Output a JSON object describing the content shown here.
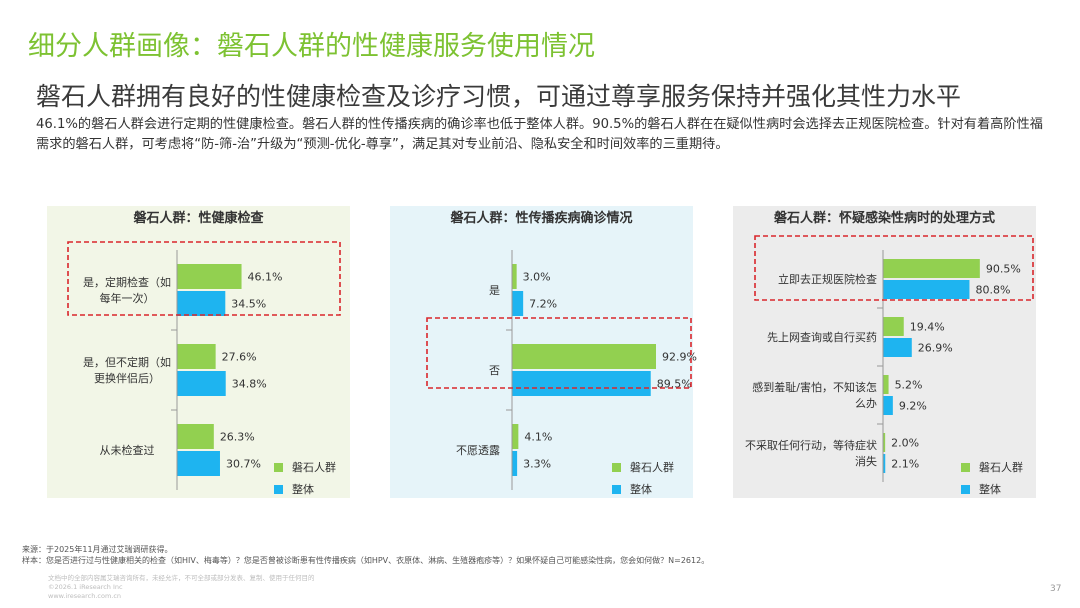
{
  "header": {
    "title": "细分人群画像：磐石人群的性健康服务使用情况",
    "subtitle": "磐石人群拥有良好的性健康检查及诊疗习惯，可通过尊享服务保持并强化其性力水平",
    "description": "46.1%的磐石人群会进行定期的性健康检查。磐石人群的性传播疾病的确诊率也低于整体人群。90.5%的磐石人群在在疑似性病时会选择去正规医院检查。针对有着高阶性福需求的磐石人群，可考虑将“防-筛-治”升级为“预测-优化-尊享”，满足其对专业前沿、隐私安全和时间效率的三重期待。"
  },
  "colors": {
    "green": "#92d050",
    "blue": "#1eb4f0",
    "highlight": "#d9262c",
    "title_green": "#7dc232"
  },
  "legend": {
    "series_1": "磐石人群",
    "series_2": "整体"
  },
  "chart_data": [
    {
      "type": "bar",
      "orientation": "horizontal",
      "title": "磐石人群：性健康检查",
      "categories": [
        "是，定期检查（如每年一次）",
        "是，但不定期（如更换伴侣后）",
        "从未检查过"
      ],
      "category_lines": [
        [
          "是，定期检查（如",
          "每年一次）"
        ],
        [
          "是，但不定期（如",
          "更换伴侣后）"
        ],
        [
          "从未检查过"
        ]
      ],
      "series": [
        {
          "name": "磐石人群",
          "values": [
            46.1,
            27.6,
            26.3
          ],
          "color": "#92d050"
        },
        {
          "name": "整体",
          "values": [
            34.5,
            34.8,
            30.7
          ],
          "color": "#1eb4f0"
        }
      ],
      "unit": "%",
      "highlight_index": 0,
      "legend": "bottom-right"
    },
    {
      "type": "bar",
      "orientation": "horizontal",
      "title": "磐石人群：性传播疾病确诊情况",
      "categories": [
        "是",
        "否",
        "不愿透露"
      ],
      "category_lines": [
        [
          "是"
        ],
        [
          "否"
        ],
        [
          "不愿透露"
        ]
      ],
      "series": [
        {
          "name": "磐石人群",
          "values": [
            3.0,
            92.9,
            4.1
          ],
          "color": "#92d050"
        },
        {
          "name": "整体",
          "values": [
            7.2,
            89.5,
            3.3
          ],
          "color": "#1eb4f0"
        }
      ],
      "unit": "%",
      "highlight_index": 1,
      "legend": "bottom-right"
    },
    {
      "type": "bar",
      "orientation": "horizontal",
      "title": "磐石人群：怀疑感染性病时的处理方式",
      "categories": [
        "立即去正规医院检查",
        "先上网查询或自行买药",
        "感到羞耻/害怕，不知该怎么办",
        "不采取任何行动，等待症状消失"
      ],
      "category_lines": [
        [
          "立即去正规医院检查"
        ],
        [
          "先上网查询或自行买药"
        ],
        [
          "感到羞耻/害怕，不知该怎",
          "么办"
        ],
        [
          "不采取任何行动，等待症状",
          "消失"
        ]
      ],
      "series": [
        {
          "name": "磐石人群",
          "values": [
            90.5,
            19.4,
            5.2,
            2.0
          ],
          "color": "#92d050"
        },
        {
          "name": "整体",
          "values": [
            80.8,
            26.9,
            9.2,
            2.1
          ],
          "color": "#1eb4f0"
        }
      ],
      "unit": "%",
      "highlight_index": 0,
      "legend": "bottom-right"
    }
  ],
  "footer": {
    "source": "来源：于2025年11月通过艾瑞调研获得。",
    "sample": "样本：您是否进行过与性健康相关的检查（如HIV、梅毒等）？您是否曾被诊断患有性传播疾病（如HPV、衣原体、淋病、生殖器疱疹等）？如果怀疑自己可能感染性病，您会如何做？N=2612。",
    "fine_1": "文档中的全部内容属艾瑞咨询所有，未经允许，不可全部或部分发表、复制、使用于任何目的",
    "fine_2": "©2026.1 iResearch Inc",
    "fine_3": "www.iresearch.com.cn",
    "page_number": "37"
  }
}
